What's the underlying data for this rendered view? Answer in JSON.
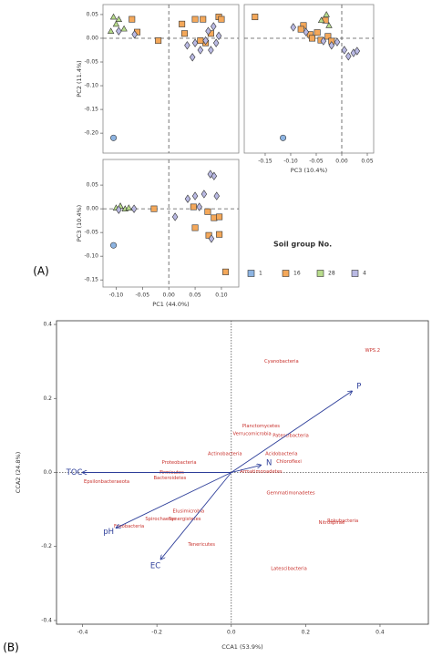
{
  "chart_data": [
    {
      "type": "scatter",
      "y_label": "PC2 (11.4%)",
      "xlim": [
        -0.125,
        0.133
      ],
      "ylim": [
        -0.242,
        0.071
      ],
      "yticks": [
        0.05,
        {
          "value": 0,
          "label": "0.00"
        },
        -0.05,
        {
          "value": -0.1,
          "label": "-0.10"
        },
        -0.15,
        {
          "value": -0.2,
          "label": "-0.20"
        }
      ],
      "zero_lines": true,
      "legend_title": "Soil group No.",
      "series": [
        {
          "name": "1",
          "color": "#8db4e2",
          "marker": "circle",
          "x": [
            -0.105
          ],
          "y": [
            -0.21
          ]
        },
        {
          "name": "16",
          "color": "#f4a85a",
          "marker": "square",
          "x": [
            -0.07,
            -0.06,
            -0.02,
            0.025,
            0.05,
            0.065,
            0.095,
            0.1,
            0.08,
            0.07,
            0.06,
            0.03
          ],
          "y": [
            0.04,
            0.013,
            -0.005,
            0.03,
            0.04,
            0.04,
            0.045,
            0.04,
            0.01,
            -0.01,
            -0.005,
            0.01
          ]
        },
        {
          "name": "28",
          "color": "#b8dc8c",
          "marker": "triangle",
          "x": [
            -0.105,
            -0.095,
            -0.11,
            -0.085,
            -0.1
          ],
          "y": [
            0.045,
            0.04,
            0.015,
            0.02,
            0.03
          ]
        },
        {
          "name": "4",
          "color": "#b9b9e3",
          "marker": "diamond",
          "x": [
            -0.095,
            -0.065,
            0.035,
            0.045,
            0.06,
            0.08,
            0.09,
            0.095,
            0.085,
            0.075,
            0.05,
            0.07
          ],
          "y": [
            0.015,
            0.008,
            -0.015,
            -0.04,
            -0.025,
            -0.025,
            -0.01,
            0.005,
            0.025,
            0.015,
            -0.01,
            -0.005
          ]
        }
      ]
    },
    {
      "type": "scatter",
      "x_label": "PC3 (10.4%)",
      "xlim": [
        -0.191,
        0.0625
      ],
      "ylim": [
        -0.242,
        0.071
      ],
      "xticks": [
        -0.15,
        {
          "value": -0.1,
          "label": "-0.10"
        },
        -0.05,
        {
          "value": 0,
          "label": "0.00"
        },
        0.05
      ],
      "zero_lines": true,
      "series": [
        {
          "color": "#8db4e2",
          "marker": "circle",
          "x": [
            -0.115
          ],
          "y": [
            -0.21
          ]
        },
        {
          "color": "#f4a85a",
          "marker": "square",
          "x": [
            -0.17,
            -0.075,
            -0.08,
            -0.062,
            -0.058,
            -0.048,
            -0.041,
            -0.032,
            -0.027,
            -0.02
          ],
          "y": [
            0.045,
            0.027,
            0.019,
            0.008,
            0,
            0.012,
            -0.004,
            0.038,
            0.004,
            -0.006
          ]
        },
        {
          "color": "#b8dc8c",
          "marker": "triangle",
          "x": [
            -0.03,
            -0.04,
            -0.025
          ],
          "y": [
            0.05,
            0.038,
            0.027
          ]
        },
        {
          "color": "#b9b9e3",
          "marker": "diamond",
          "x": [
            -0.095,
            -0.07,
            -0.036,
            -0.02,
            -0.009,
            0.005,
            0.013,
            0.023,
            0.03
          ],
          "y": [
            0.023,
            0.013,
            -0.006,
            -0.015,
            -0.008,
            -0.025,
            -0.038,
            -0.031,
            -0.027
          ]
        }
      ]
    },
    {
      "type": "scatter",
      "x_label": "PC1 (44.0%)",
      "y_label": "PC3 (10.4%)",
      "panel_label": "(A)",
      "xlim": [
        -0.125,
        0.133
      ],
      "ylim": [
        -0.165,
        0.104
      ],
      "xticks": [
        {
          "value": -0.1,
          "label": "-0.10"
        },
        -0.05,
        {
          "value": 0,
          "label": "0.00"
        },
        0.05,
        {
          "value": 0.1,
          "label": "0.10"
        }
      ],
      "yticks": [
        0.05,
        {
          "value": 0,
          "label": "0.00"
        },
        -0.05,
        {
          "value": -0.1,
          "label": "-0.10"
        },
        -0.15
      ],
      "zero_lines": true,
      "series": [
        {
          "color": "#8db4e2",
          "marker": "circle",
          "x": [
            -0.105
          ],
          "y": [
            -0.077
          ]
        },
        {
          "color": "#f4a85a",
          "marker": "square",
          "x": [
            -0.028,
            0.047,
            0.074,
            0.086,
            0.096,
            0.05,
            0.076,
            0.096,
            0.108
          ],
          "y": [
            0,
            0.004,
            -0.006,
            -0.019,
            -0.017,
            -0.04,
            -0.056,
            -0.054,
            -0.133
          ]
        },
        {
          "color": "#b8dc8c",
          "marker": "triangle",
          "x": [
            -0.1,
            -0.092,
            -0.083,
            -0.076
          ],
          "y": [
            0.002,
            0.006,
            0,
            0.002
          ]
        },
        {
          "color": "#b9b9e3",
          "marker": "diamond",
          "x": [
            -0.095,
            -0.066,
            0.012,
            0.036,
            0.05,
            0.067,
            0.079,
            0.086,
            0.091,
            0.081,
            0.058
          ],
          "y": [
            -0.002,
            0,
            -0.017,
            0.021,
            0.027,
            0.031,
            0.073,
            0.069,
            0.027,
            -0.063,
            0.004
          ]
        }
      ]
    },
    {
      "type": "cca",
      "x_label": "CCA1 (53.9%)",
      "y_label": "CCA2 (24.8%)",
      "panel_label": "(B)",
      "xlim": [
        -0.47,
        0.53
      ],
      "ylim": [
        -0.41,
        0.41
      ],
      "xticks": [
        -0.4,
        -0.2,
        {
          "value": 0,
          "label": "0.0"
        },
        0.2,
        0.4
      ],
      "yticks": [
        0.4,
        0.2,
        {
          "value": 0,
          "label": "0.0"
        },
        -0.2,
        -0.4
      ],
      "zero_lines": true,
      "arrow_color": "#2e3f9a",
      "label_color": "#c8312c",
      "arrows": [
        {
          "name": "TOC",
          "x": -0.4,
          "y": 0.0
        },
        {
          "name": "pH",
          "x": -0.31,
          "y": -0.15
        },
        {
          "name": "EC",
          "x": -0.19,
          "y": -0.235
        },
        {
          "name": "N",
          "x": 0.08,
          "y": 0.02
        },
        {
          "name": "P",
          "x": 0.325,
          "y": 0.22
        }
      ],
      "species": [
        {
          "name": "WPS.2",
          "x": 0.38,
          "y": 0.33
        },
        {
          "name": "Cyanobacteria",
          "x": 0.135,
          "y": 0.3
        },
        {
          "name": "Planctomycetes",
          "x": 0.08,
          "y": 0.125
        },
        {
          "name": "Verrucomicrobia",
          "x": 0.056,
          "y": 0.105
        },
        {
          "name": "Patescibacteria",
          "x": 0.16,
          "y": 0.1
        },
        {
          "name": "Actinobacteria",
          "x": -0.017,
          "y": 0.05
        },
        {
          "name": "Acidobacteria",
          "x": 0.135,
          "y": 0.05
        },
        {
          "name": "Chloroflexi",
          "x": 0.155,
          "y": 0.03
        },
        {
          "name": "Proteobacteria",
          "x": -0.14,
          "y": 0.027
        },
        {
          "name": "Firmicutes",
          "x": -0.16,
          "y": 0.0
        },
        {
          "name": "Bacteroidetes",
          "x": -0.165,
          "y": -0.015
        },
        {
          "name": "Armatimonadetes",
          "x": 0.08,
          "y": 0.002
        },
        {
          "name": "Epsilonbacteraeota",
          "x": -0.335,
          "y": -0.025
        },
        {
          "name": "Gemmatimonadetes",
          "x": 0.16,
          "y": -0.055
        },
        {
          "name": "Rokubacteria",
          "x": 0.3,
          "y": -0.13
        },
        {
          "name": "Nitrospirae",
          "x": 0.27,
          "y": -0.135
        },
        {
          "name": "Elusimicrobia",
          "x": -0.115,
          "y": -0.105
        },
        {
          "name": "Spirochaetes",
          "x": -0.19,
          "y": -0.125
        },
        {
          "name": "Synergistetes",
          "x": -0.125,
          "y": -0.125
        },
        {
          "name": "Fusobacteria",
          "x": -0.275,
          "y": -0.145
        },
        {
          "name": "Tenericutes",
          "x": -0.08,
          "y": -0.195
        },
        {
          "name": "Latescibacteria",
          "x": 0.155,
          "y": -0.26
        }
      ]
    }
  ]
}
